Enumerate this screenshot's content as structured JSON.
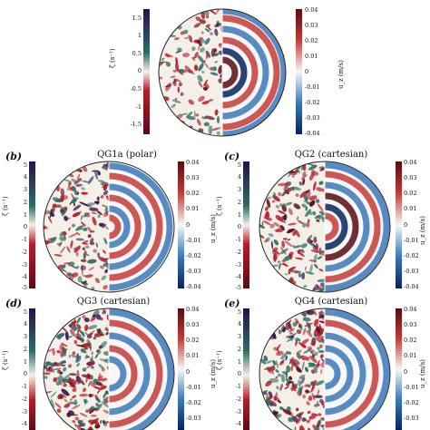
{
  "panels": [
    {
      "id": "a",
      "label": "",
      "title": "",
      "left_colorbar": {
        "label": "ζ (s⁻¹)",
        "ticks": [
          "1.5",
          "1",
          "0.5",
          "0",
          "-0.5",
          "-1",
          "-1.5"
        ]
      },
      "right_colorbar": {
        "label": "u_z (m/s)",
        "ticks": [
          "0.04",
          "0.03",
          "0.02",
          "0.01",
          "0",
          "-0.01",
          "-0.02",
          "-0.03",
          "-0.04"
        ]
      }
    },
    {
      "id": "b",
      "label": "(b)",
      "title": "QG1a (polar)",
      "left_colorbar": {
        "label": "ζ (s⁻¹)",
        "ticks": [
          "5",
          "4",
          "3",
          "2",
          "1",
          "0",
          "-1",
          "-2",
          "-3",
          "-4",
          "-5"
        ]
      },
      "right_colorbar": {
        "label": "u_z (m/s)",
        "ticks": [
          "0.04",
          "0.03",
          "0.02",
          "0.01",
          "0",
          "-0.01",
          "-0.02",
          "-0.03",
          "-0.04"
        ]
      }
    },
    {
      "id": "c",
      "label": "(c)",
      "title": "QG2 (cartesian)",
      "left_colorbar": {
        "label": "ζ (s⁻¹)",
        "ticks": [
          "5",
          "4",
          "3",
          "2",
          "1",
          "0",
          "-1",
          "-2",
          "-3",
          "-4",
          "-5"
        ]
      },
      "right_colorbar": {
        "label": "u_z (m/s)",
        "ticks": [
          "0.04",
          "0.03",
          "0.02",
          "0.01",
          "0",
          "-0.01",
          "-0.02",
          "-0.03",
          "-0.04"
        ]
      }
    },
    {
      "id": "d",
      "label": "(d)",
      "title": "QG3 (cartesian)",
      "left_colorbar": {
        "label": "ζ (s⁻¹)",
        "ticks": [
          "5",
          "4",
          "3",
          "2",
          "1",
          "0",
          "-1",
          "-2",
          "-3",
          "-4"
        ]
      },
      "right_colorbar": {
        "label": "u_z (m/s)",
        "ticks": [
          "0.04",
          "0.03",
          "0.02",
          "0.01",
          "0",
          "-0.01",
          "-0.02",
          "-0.03"
        ]
      }
    },
    {
      "id": "e",
      "label": "(e)",
      "title": "QG4 (cartesian)",
      "left_colorbar": {
        "label": "ζ (s⁻¹)",
        "ticks": [
          "5",
          "4",
          "3",
          "2",
          "1",
          "0",
          "-1",
          "-2",
          "-3",
          "-4"
        ]
      },
      "right_colorbar": {
        "label": "u_z (m/s)",
        "ticks": [
          "0.04",
          "0.03",
          "0.02",
          "0.01",
          "0",
          "-0.01",
          "-0.02",
          "-0.03"
        ]
      }
    }
  ],
  "colors": {
    "vorticity_map": [
      "#2a0f4a",
      "#2d6e64",
      "#f4efe7",
      "#b21f2b",
      "#5a0b18"
    ],
    "velocity_map": [
      "#08235e",
      "#3b78b8",
      "#f7f7f7",
      "#c43b37",
      "#5b0a13"
    ]
  }
}
